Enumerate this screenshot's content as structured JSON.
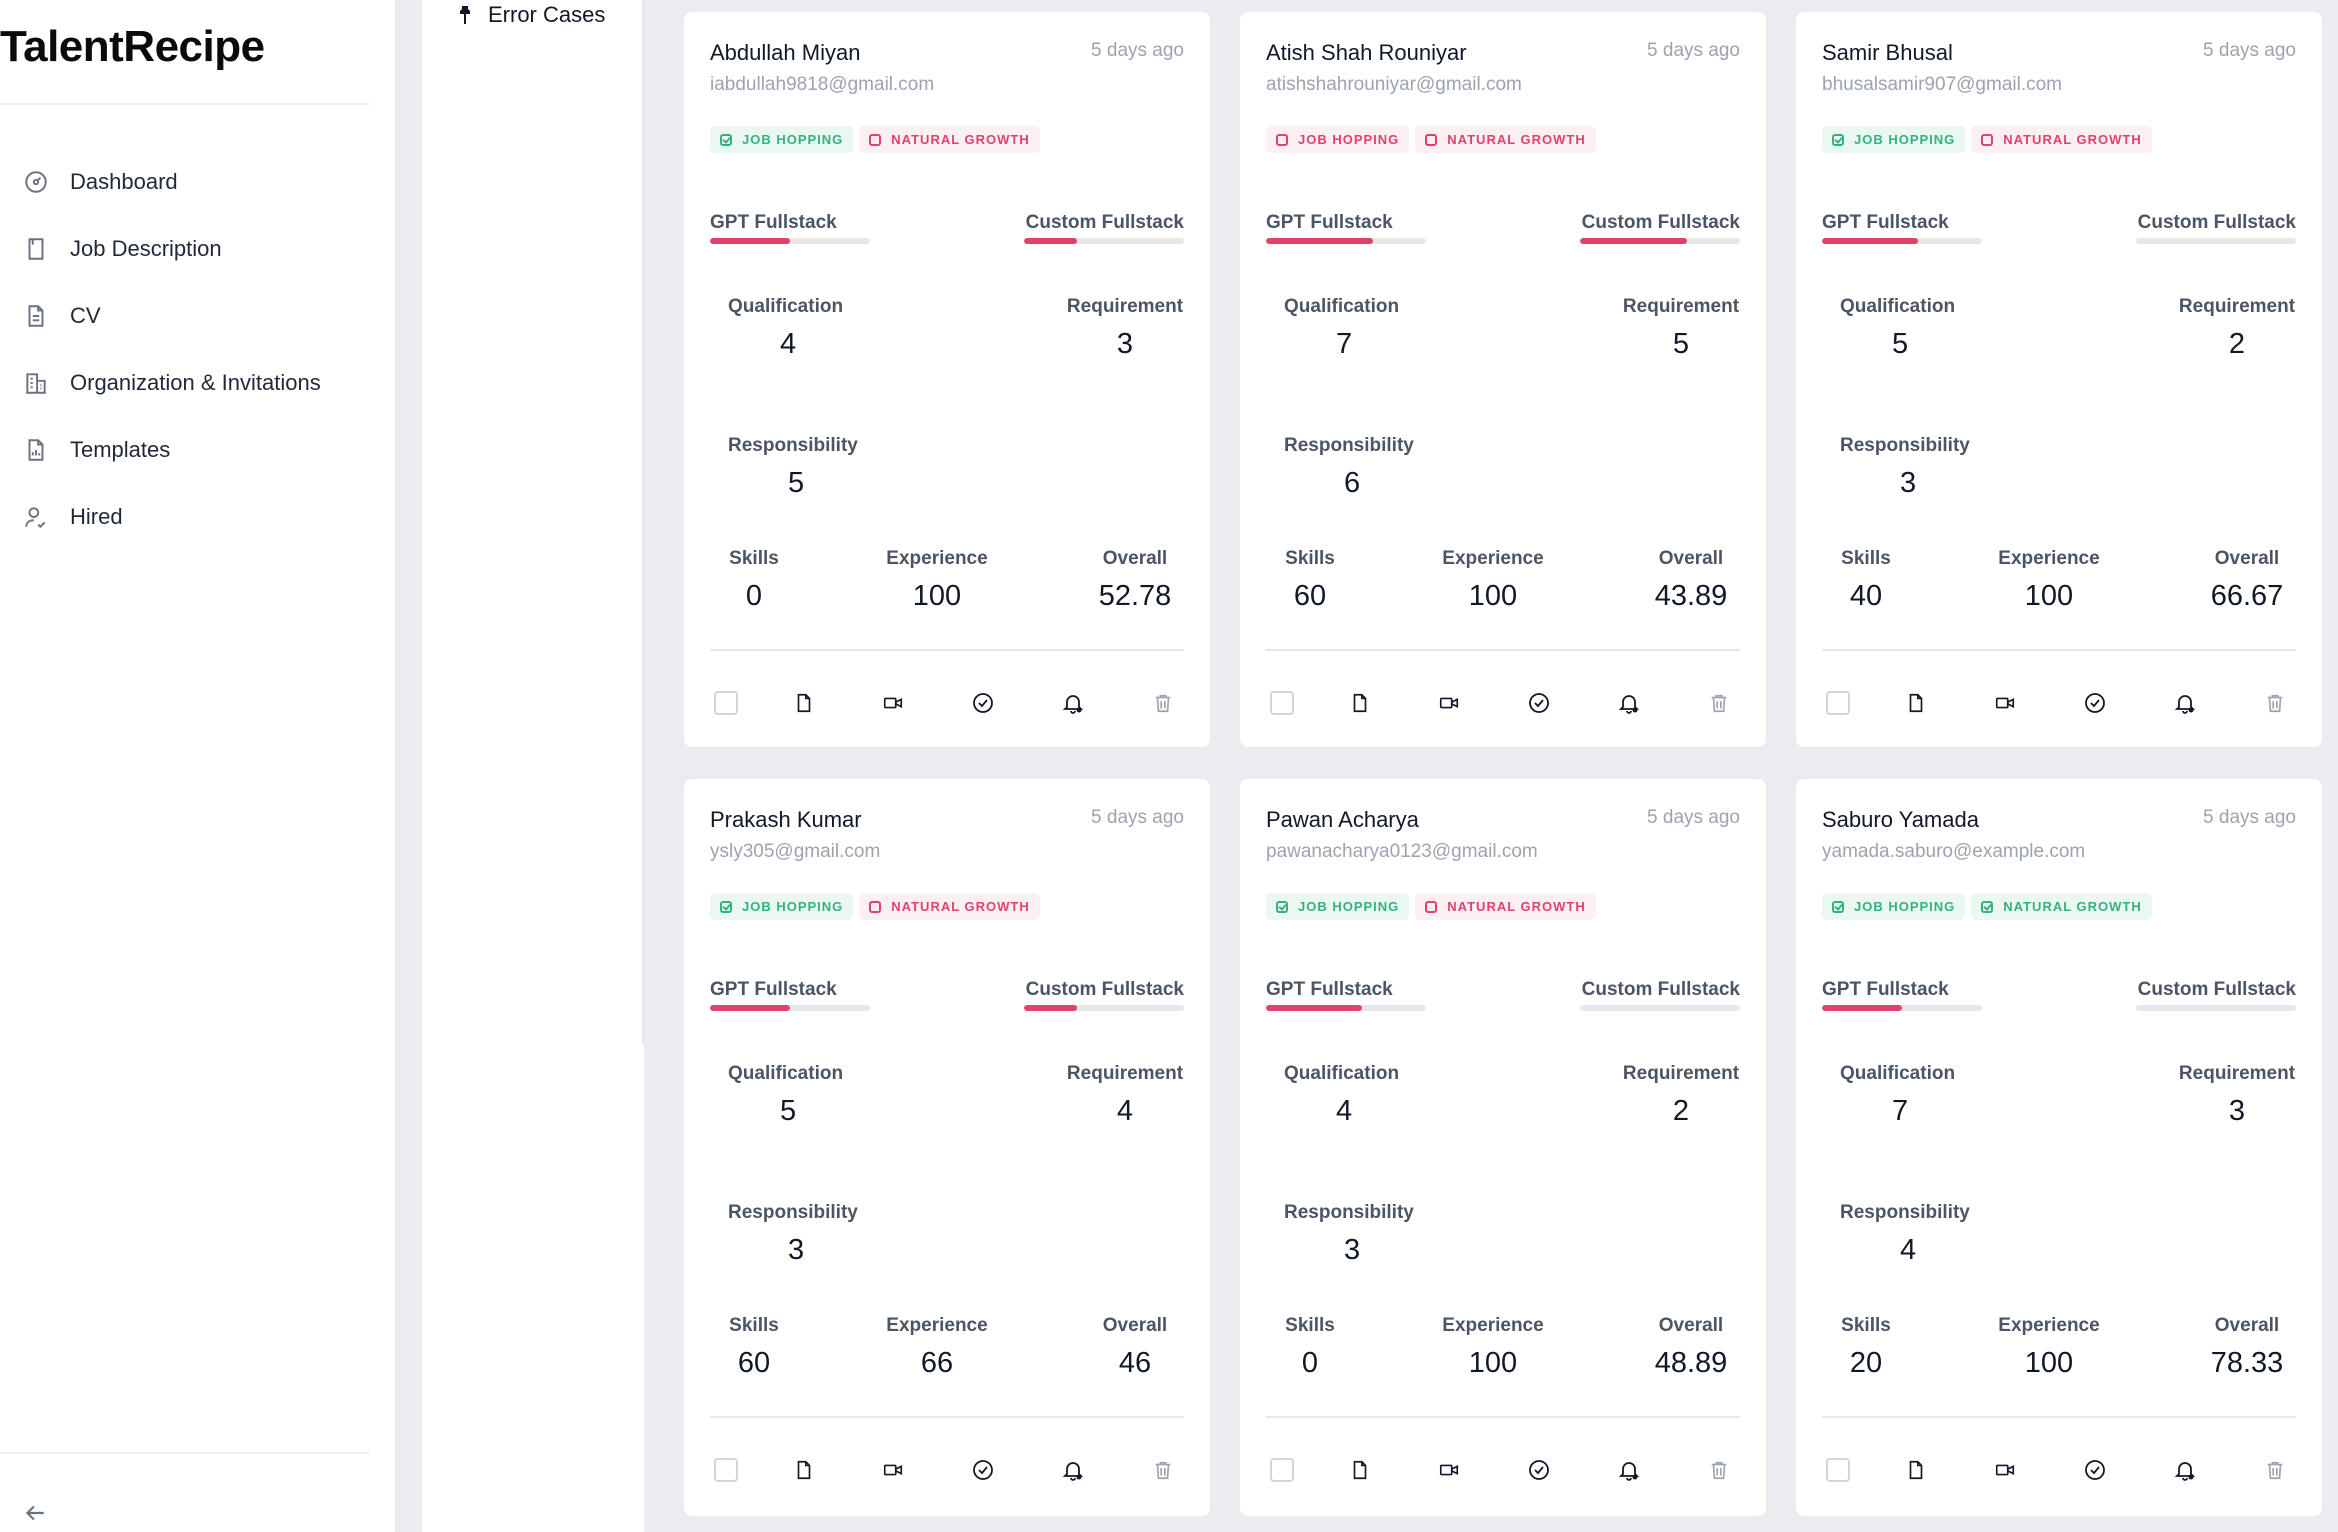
{
  "app": {
    "name": "TalentRecipe"
  },
  "sidebar": {
    "items": [
      {
        "label": "Dashboard",
        "icon": "dashboard-gauge-icon"
      },
      {
        "label": "Job Description",
        "icon": "bookmark-icon"
      },
      {
        "label": "CV",
        "icon": "document-icon"
      },
      {
        "label": "Organization & Invitations",
        "icon": "building-icon"
      },
      {
        "label": "Templates",
        "icon": "template-file-icon"
      },
      {
        "label": "Hired",
        "icon": "user-check-icon"
      }
    ],
    "collapse_icon": "arrow-left-icon"
  },
  "subpanel": {
    "error_cases_label": "Error Cases",
    "icon": "pin-icon"
  },
  "colors": {
    "accent": "#e0426c",
    "tag_green": "#34b27e",
    "tag_red": "#e0426c",
    "background": "#ebecef"
  },
  "labels": {
    "gpt": "GPT Fullstack",
    "custom": "Custom Fullstack",
    "qualification": "Qualification",
    "requirement": "Requirement",
    "responsibility": "Responsibility",
    "skills": "Skills",
    "experience": "Experience",
    "overall": "Overall",
    "job_hopping": "JOB HOPPING",
    "natural_growth": "NATURAL GROWTH"
  },
  "candidates": [
    {
      "name": "Abdullah Miyan",
      "time": "5 days ago",
      "email": "iabdullah9818@gmail.com",
      "job_hopping": "green",
      "natural_growth": "red",
      "gpt_fill": 0.5,
      "custom_fill": 0.33,
      "qualification": "4",
      "requirement": "3",
      "responsibility": "5",
      "skills": "0",
      "experience": "100",
      "overall": "52.78"
    },
    {
      "name": "Atish Shah Rouniyar",
      "time": "5 days ago",
      "email": "atishshahrouniyar@gmail.com",
      "job_hopping": "red",
      "natural_growth": "red",
      "gpt_fill": 0.67,
      "custom_fill": 0.67,
      "qualification": "7",
      "requirement": "5",
      "responsibility": "6",
      "skills": "60",
      "experience": "100",
      "overall": "43.89"
    },
    {
      "name": "Samir Bhusal",
      "time": "5 days ago",
      "email": "bhusalsamir907@gmail.com",
      "job_hopping": "green",
      "natural_growth": "red",
      "gpt_fill": 0.6,
      "custom_fill": 0,
      "qualification": "5",
      "requirement": "2",
      "responsibility": "3",
      "skills": "40",
      "experience": "100",
      "overall": "66.67"
    },
    {
      "name": "Prakash Kumar",
      "time": "5 days ago",
      "email": "ysly305@gmail.com",
      "job_hopping": "green",
      "natural_growth": "red",
      "gpt_fill": 0.5,
      "custom_fill": 0.33,
      "qualification": "5",
      "requirement": "4",
      "responsibility": "3",
      "skills": "60",
      "experience": "66",
      "overall": "46"
    },
    {
      "name": "Pawan Acharya",
      "time": "5 days ago",
      "email": "pawanacharya0123@gmail.com",
      "job_hopping": "green",
      "natural_growth": "red",
      "gpt_fill": 0.6,
      "custom_fill": 0,
      "qualification": "4",
      "requirement": "2",
      "responsibility": "3",
      "skills": "0",
      "experience": "100",
      "overall": "48.89"
    },
    {
      "name": "Saburo Yamada",
      "time": "5 days ago",
      "email": "yamada.saburo@example.com",
      "job_hopping": "green",
      "natural_growth": "green",
      "gpt_fill": 0.5,
      "custom_fill": 0,
      "qualification": "7",
      "requirement": "3",
      "responsibility": "4",
      "skills": "20",
      "experience": "100",
      "overall": "78.33"
    }
  ],
  "card_actions": [
    "select-checkbox",
    "cv-file-icon",
    "video-icon",
    "check-circle-icon",
    "notification-bell-icon",
    "trash-icon"
  ]
}
